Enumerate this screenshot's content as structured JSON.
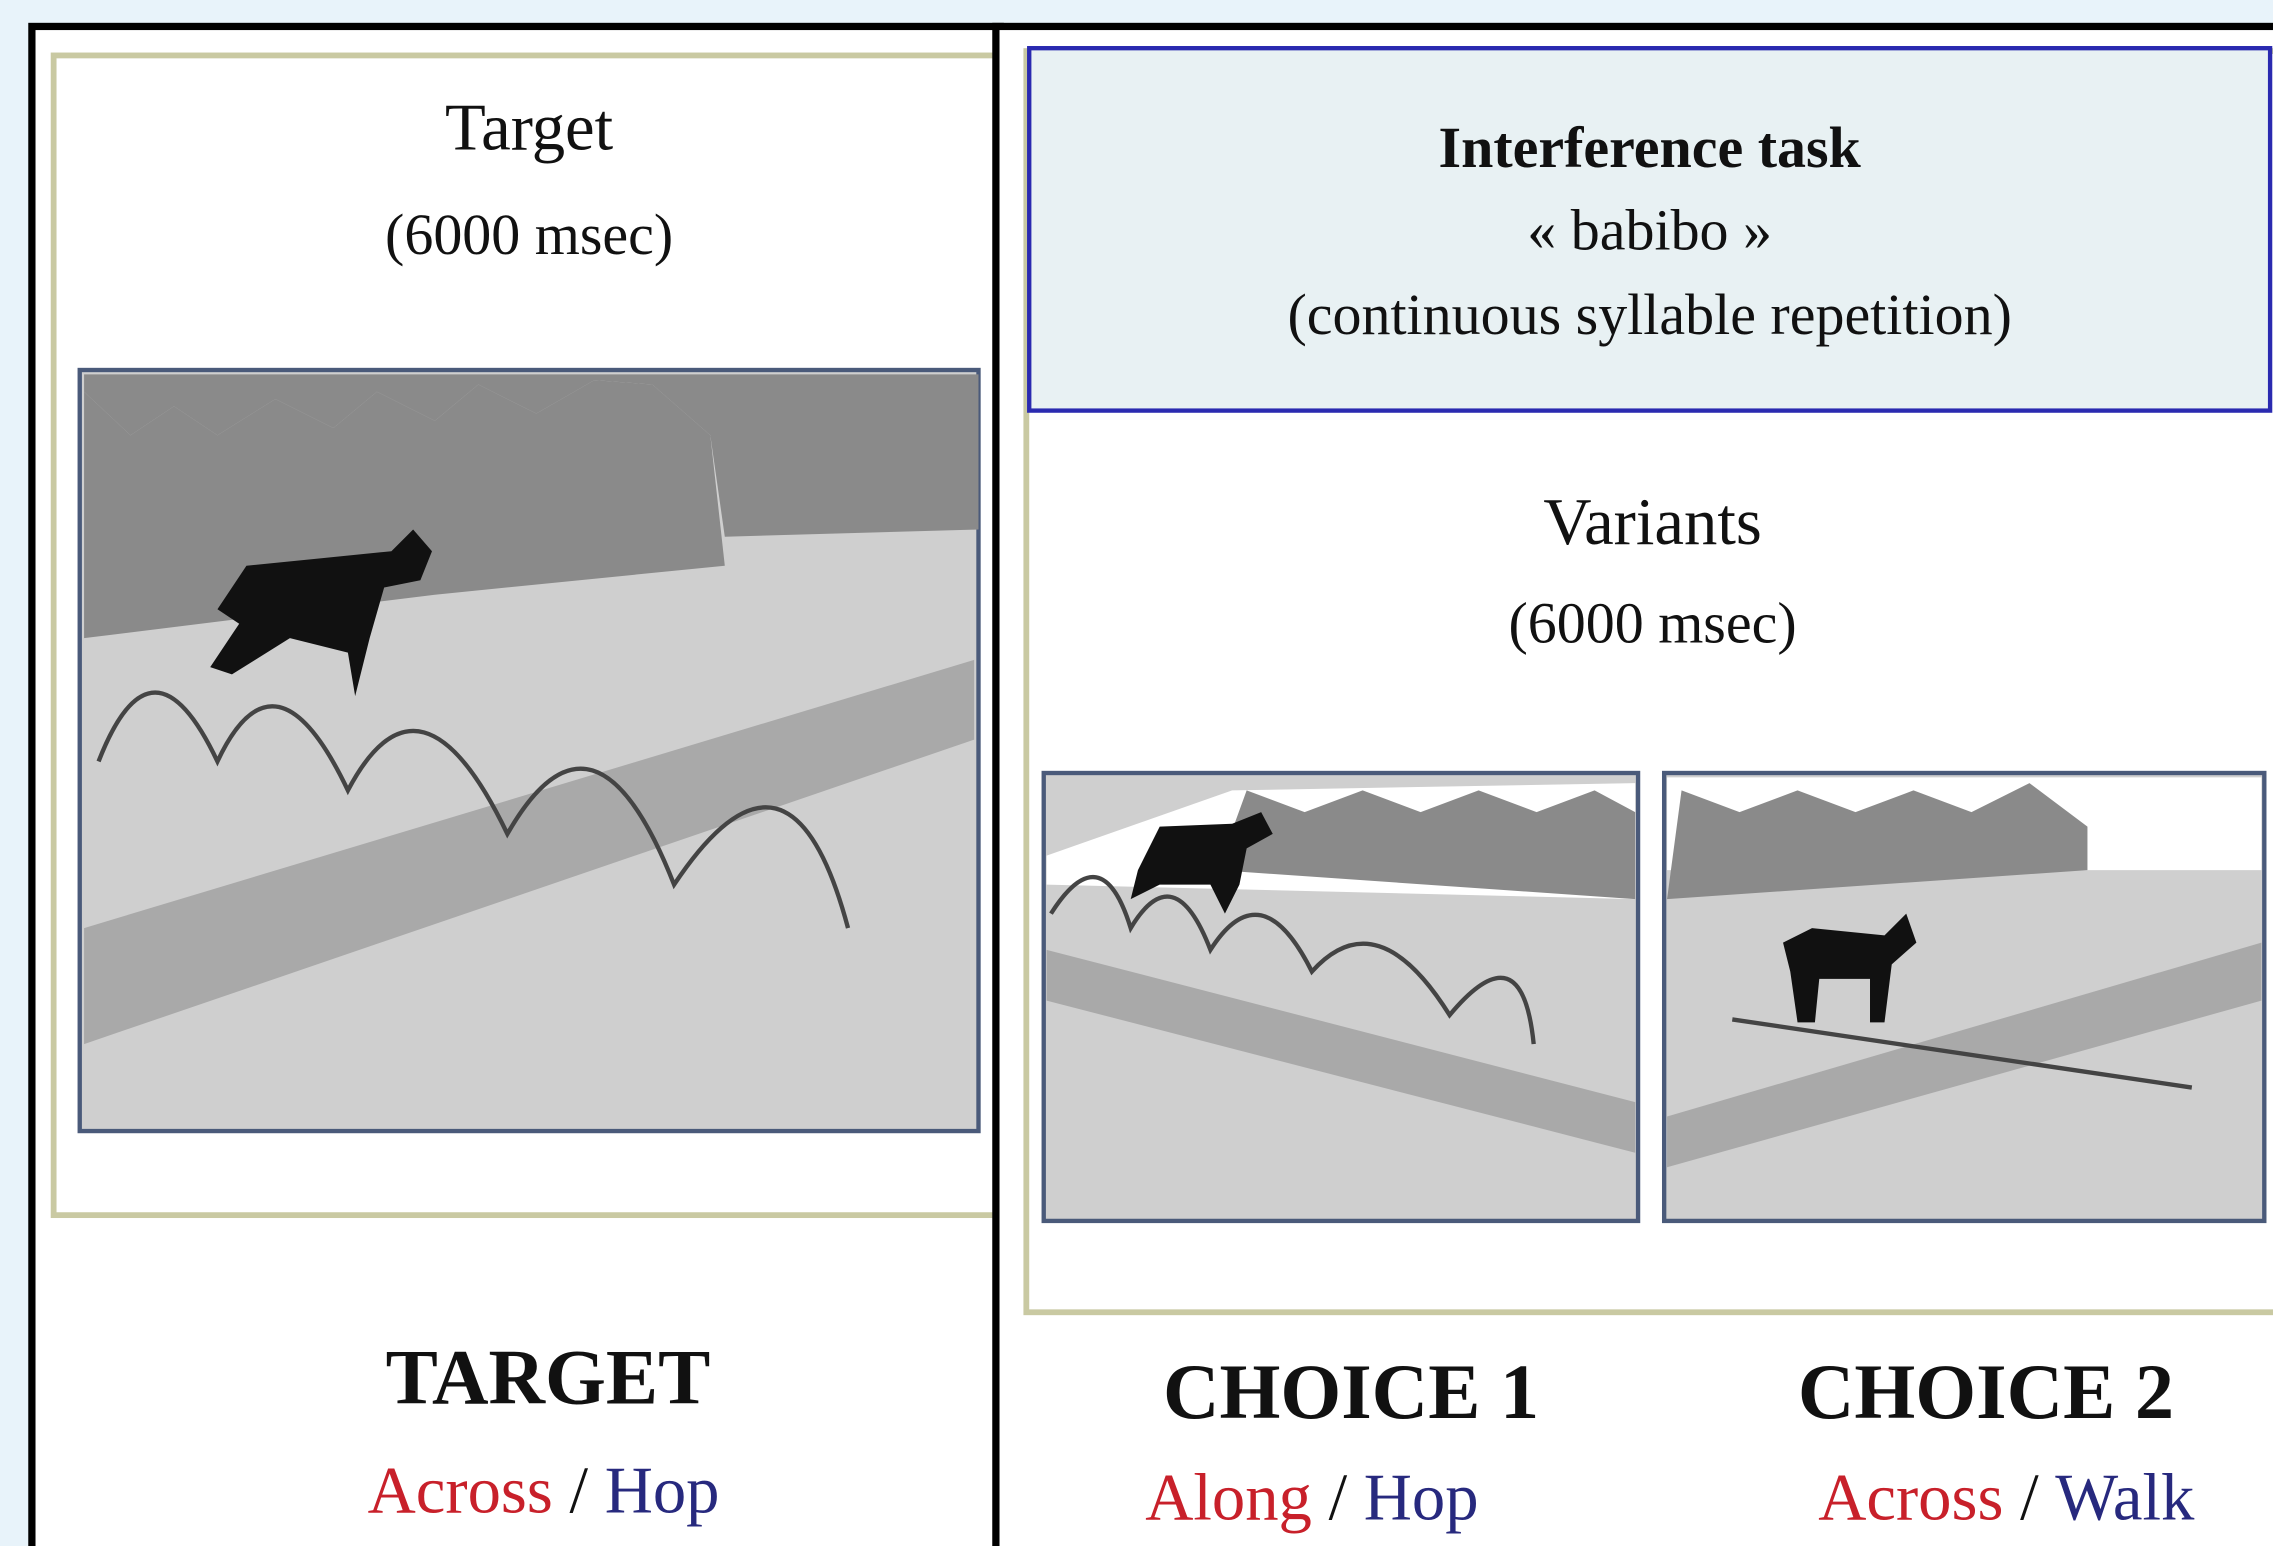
{
  "target_panel": {
    "title": "Target",
    "duration": "(6000 msec)",
    "label": "TARGET",
    "path": "Across",
    "separator": "/",
    "manner": "Hop"
  },
  "variants_panel": {
    "interference": {
      "title": "Interference task",
      "syllables": "« babibo »",
      "description": "(continuous syllable repetition)"
    },
    "title": "Variants",
    "duration": "(6000 msec)",
    "choices": [
      {
        "label": "CHOICE 1",
        "path": "Along",
        "separator": "/",
        "manner": "Hop"
      },
      {
        "label": "CHOICE 2",
        "path": "Across",
        "separator": "/",
        "manner": "Walk"
      }
    ]
  }
}
